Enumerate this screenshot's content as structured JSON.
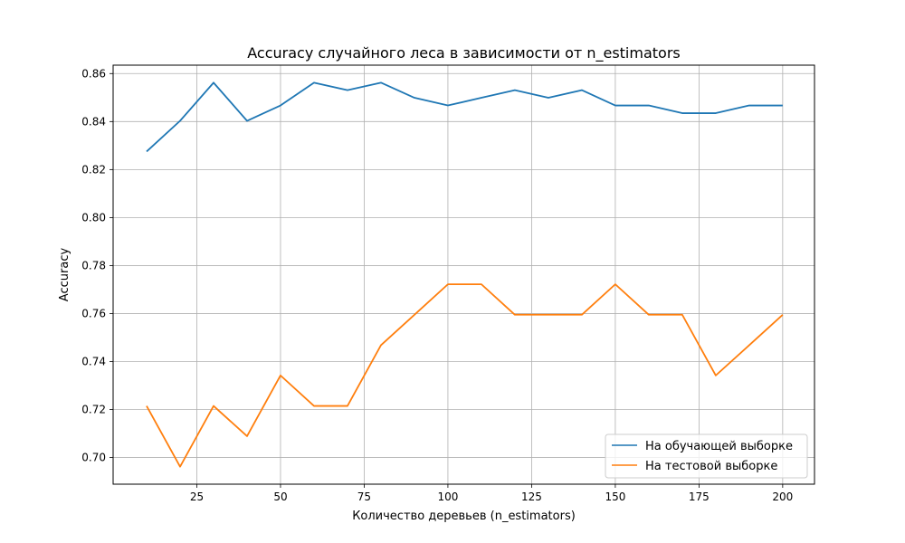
{
  "chart_data": {
    "type": "line",
    "title": "Accuracy случайного леса в зависимости от n_estimators",
    "xlabel": "Количество деревьев (n_estimators)",
    "ylabel": "Accuracy",
    "x": [
      10,
      20,
      30,
      40,
      50,
      60,
      70,
      80,
      90,
      100,
      110,
      120,
      130,
      140,
      150,
      160,
      170,
      180,
      190,
      200
    ],
    "xlim": [
      0,
      209.5
    ],
    "ylim": [
      0.6889,
      0.8635
    ],
    "xticks": [
      25,
      50,
      75,
      100,
      125,
      150,
      175,
      200
    ],
    "yticks": [
      0.7,
      0.72,
      0.74,
      0.76,
      0.78,
      0.8,
      0.82,
      0.84,
      0.86
    ],
    "grid": true,
    "legend_position": "bottom-right",
    "series": [
      {
        "name": "На обучающей выборке",
        "color": "#1f77b4",
        "values": [
          0.8275,
          0.8403,
          0.8562,
          0.8403,
          0.8467,
          0.8562,
          0.8531,
          0.8562,
          0.8499,
          0.8467,
          0.8499,
          0.8531,
          0.8499,
          0.8531,
          0.8467,
          0.8467,
          0.8435,
          0.8435,
          0.8467,
          0.8467
        ]
      },
      {
        "name": "На тестовой выборке",
        "color": "#ff7f0e",
        "values": [
          0.7215,
          0.6962,
          0.7215,
          0.7089,
          0.7342,
          0.7215,
          0.7215,
          0.7468,
          0.7595,
          0.7722,
          0.7722,
          0.7595,
          0.7595,
          0.7595,
          0.7722,
          0.7595,
          0.7595,
          0.7342,
          0.7468,
          0.7595
        ]
      }
    ]
  }
}
